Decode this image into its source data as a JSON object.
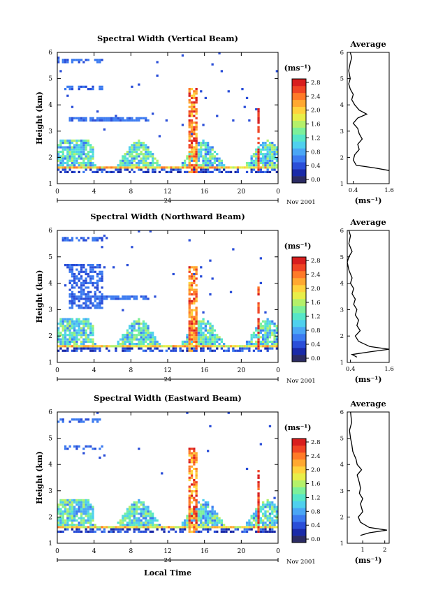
{
  "chart_data": [
    {
      "type": "heatmap",
      "title": "Spectral Width (Vertical Beam)",
      "xlabel": "",
      "ylabel": "Height (km)",
      "x_ticks": [
        "0",
        "4",
        "8",
        "12",
        "16",
        "20",
        "0"
      ],
      "y_ticks": [
        "1",
        "2",
        "3",
        "4",
        "5",
        "6"
      ],
      "date_mark": "24",
      "date_suffix": "Nov 2001",
      "colorbar": {
        "unit": "(ms⁻¹)",
        "ticks": [
          "0.0",
          "0.4",
          "0.8",
          "1.2",
          "1.6",
          "2.0",
          "2.4",
          "2.8"
        ],
        "range": [
          0.0,
          3.0
        ]
      },
      "average": {
        "title": "Average",
        "xlabel": "(ms⁻¹)",
        "x_ticks": [
          "0.4",
          "1.6"
        ],
        "xlim": [
          0.2,
          1.6
        ],
        "profile": [
          [
            1.5,
            1.6
          ],
          [
            1.6,
            1.1
          ],
          [
            1.7,
            0.5
          ],
          [
            1.9,
            0.4
          ],
          [
            2.1,
            0.45
          ],
          [
            2.3,
            0.6
          ],
          [
            2.5,
            0.55
          ],
          [
            2.7,
            0.7
          ],
          [
            2.9,
            0.6
          ],
          [
            3.1,
            0.55
          ],
          [
            3.3,
            0.4
          ],
          [
            3.5,
            0.55
          ],
          [
            3.65,
            0.85
          ],
          [
            3.8,
            0.6
          ],
          [
            4.0,
            0.45
          ],
          [
            4.2,
            0.35
          ],
          [
            4.4,
            0.4
          ],
          [
            4.6,
            0.3
          ],
          [
            4.8,
            0.25
          ],
          [
            5.0,
            0.3
          ],
          [
            5.3,
            0.25
          ],
          [
            5.6,
            0.3
          ],
          [
            5.8,
            0.35
          ],
          [
            6.0,
            0.3
          ]
        ]
      }
    },
    {
      "type": "heatmap",
      "title": "Spectral Width (Northward Beam)",
      "xlabel": "",
      "ylabel": "Height (km)",
      "x_ticks": [
        "0",
        "4",
        "8",
        "12",
        "16",
        "20",
        "0"
      ],
      "y_ticks": [
        "1",
        "2",
        "3",
        "4",
        "5",
        "6"
      ],
      "date_mark": "24",
      "date_suffix": "Nov 2001",
      "colorbar": {
        "unit": "(ms⁻¹)",
        "ticks": [
          "0.0",
          "0.4",
          "0.8",
          "1.2",
          "1.6",
          "2.0",
          "2.4",
          "2.8"
        ],
        "range": [
          0.0,
          3.0
        ]
      },
      "average": {
        "title": "Average",
        "xlabel": "(ms⁻¹)",
        "x_ticks": [
          "0.4",
          "1.6"
        ],
        "xlim": [
          0.3,
          1.6
        ],
        "profile": [
          [
            1.2,
            0.6
          ],
          [
            1.3,
            0.45
          ],
          [
            1.4,
            1.0
          ],
          [
            1.5,
            1.6
          ],
          [
            1.6,
            1.0
          ],
          [
            1.8,
            0.65
          ],
          [
            2.0,
            0.55
          ],
          [
            2.2,
            0.7
          ],
          [
            2.4,
            0.6
          ],
          [
            2.6,
            0.65
          ],
          [
            2.8,
            0.55
          ],
          [
            3.0,
            0.6
          ],
          [
            3.2,
            0.5
          ],
          [
            3.4,
            0.55
          ],
          [
            3.6,
            0.45
          ],
          [
            3.8,
            0.5
          ],
          [
            4.0,
            0.4
          ],
          [
            4.2,
            0.45
          ],
          [
            4.5,
            0.35
          ],
          [
            4.8,
            0.3
          ],
          [
            5.0,
            0.35
          ],
          [
            5.2,
            0.45
          ],
          [
            5.5,
            0.35
          ],
          [
            5.8,
            0.4
          ],
          [
            6.0,
            0.35
          ]
        ]
      }
    },
    {
      "type": "heatmap",
      "title": "Spectral Width (Eastward Beam)",
      "xlabel": "Local Time",
      "ylabel": "Height (km)",
      "x_ticks": [
        "0",
        "4",
        "8",
        "12",
        "16",
        "20",
        "0"
      ],
      "y_ticks": [
        "1",
        "2",
        "3",
        "4",
        "5",
        "6"
      ],
      "date_mark": "24",
      "date_suffix": "Nov 2001",
      "colorbar": {
        "unit": "(ms⁻¹)",
        "ticks": [
          "0.0",
          "0.4",
          "0.8",
          "1.2",
          "1.6",
          "2.0",
          "2.4",
          "2.8"
        ],
        "range": [
          0.0,
          3.0
        ]
      },
      "average": {
        "title": "Average",
        "xlabel": "(ms⁻¹)",
        "x_ticks": [
          "1",
          "2"
        ],
        "xlim": [
          0.3,
          2.2
        ],
        "profile": [
          [
            1.3,
            0.9
          ],
          [
            1.4,
            1.3
          ],
          [
            1.5,
            2.1
          ],
          [
            1.6,
            1.3
          ],
          [
            1.8,
            0.9
          ],
          [
            2.0,
            0.8
          ],
          [
            2.2,
            1.0
          ],
          [
            2.5,
            0.9
          ],
          [
            2.7,
            1.0
          ],
          [
            2.9,
            0.85
          ],
          [
            3.1,
            0.9
          ],
          [
            3.3,
            0.85
          ],
          [
            3.6,
            0.75
          ],
          [
            3.8,
            0.95
          ],
          [
            4.0,
            0.75
          ],
          [
            4.2,
            0.7
          ],
          [
            4.5,
            0.55
          ],
          [
            4.8,
            0.5
          ],
          [
            5.0,
            0.45
          ],
          [
            5.3,
            0.4
          ],
          [
            5.6,
            0.5
          ],
          [
            6.0,
            0.45
          ]
        ]
      }
    }
  ]
}
